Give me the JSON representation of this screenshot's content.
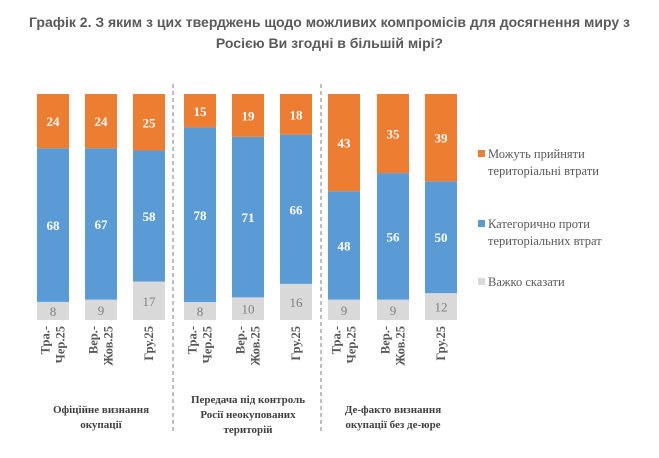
{
  "chart_data": {
    "type": "bar",
    "stacked": true,
    "percent": true,
    "title": "Графік 2. З яким з цих тверджень щодо можливих компромісів для досягнення миру з Росією Ви згодні в більшій мірі?",
    "title_lines": [
      "Графік 2. З яким з цих тверджень щодо можливих компромісів для досягнення миру з",
      "Росією Ви згодні в більшій мірі?"
    ],
    "xlabel": "",
    "ylabel": "",
    "ylim": [
      0,
      100
    ],
    "grid": false,
    "legend_position": "right",
    "groups": [
      {
        "label": "Офіційне визнання окупації",
        "label_lines": [
          "Офіційне визнання",
          "окупації"
        ],
        "categories": [
          {
            "lines": [
              "Тра.-",
              "Чер.25"
            ]
          },
          {
            "lines": [
              "Вер.-",
              "Жов.25"
            ]
          },
          {
            "lines": [
              "Гру.25"
            ]
          }
        ]
      },
      {
        "label": "Передача під контроль Росії неокупованих територій",
        "label_lines": [
          "Передача під контроль",
          "Росії неокупованих",
          "територій"
        ],
        "categories": [
          {
            "lines": [
              "Тра.-",
              "Чер.25"
            ]
          },
          {
            "lines": [
              "Вер.-",
              "Жов.25"
            ]
          },
          {
            "lines": [
              "Гру.25"
            ]
          }
        ]
      },
      {
        "label": "Де-факто визнання окупації без де-юре",
        "label_lines": [
          "Де-факто визнання",
          "окупації без де-юре"
        ],
        "categories": [
          {
            "lines": [
              "Тра.-",
              "Чер.25"
            ]
          },
          {
            "lines": [
              "Вер.-",
              "Жов.25"
            ]
          },
          {
            "lines": [
              "Гру.25"
            ]
          }
        ]
      }
    ],
    "categories": [
      "Тра.-Чер.25",
      "Вер.-Жов.25",
      "Гру.25",
      "Тра.-Чер.25",
      "Вер.-Жов.25",
      "Гру.25",
      "Тра.-Чер.25",
      "Вер.-Жов.25",
      "Гру.25"
    ],
    "series": [
      {
        "name": "Важко сказати",
        "legend_lines": [
          "Важко сказати"
        ],
        "color": "#d9d9d9",
        "label_color": "#7f7f7f",
        "values": [
          8,
          9,
          17,
          8,
          10,
          16,
          9,
          9,
          12
        ]
      },
      {
        "name": "Категорично проти територіальних втрат",
        "legend_lines": [
          "Категорично проти",
          "територіальних втрат"
        ],
        "color": "#5b9bd5",
        "label_color": "#ffffff",
        "values": [
          68,
          67,
          58,
          78,
          71,
          66,
          48,
          56,
          50
        ]
      },
      {
        "name": "Можуть прийняти територіальні втрати",
        "legend_lines": [
          "Можуть прийняти",
          "територіальні втрати"
        ],
        "color": "#ed7d31",
        "label_color": "#ffffff",
        "values": [
          24,
          24,
          25,
          15,
          19,
          18,
          43,
          35,
          39
        ]
      }
    ],
    "legend_order": [
      2,
      1,
      0
    ]
  }
}
